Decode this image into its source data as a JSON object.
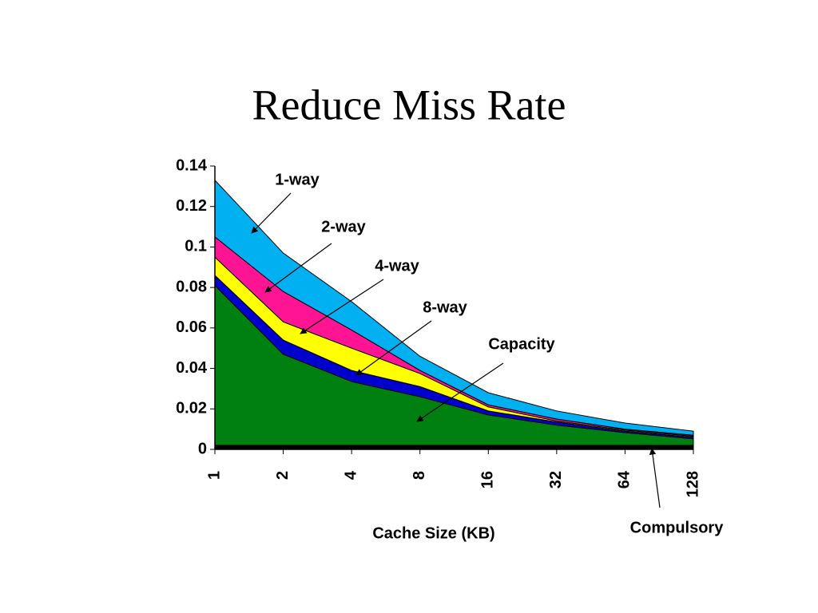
{
  "chart_data": {
    "type": "stacked-area",
    "title": "Reduce Miss Rate",
    "x_label": "Cache Size (KB)",
    "categories": [
      "1",
      "2",
      "4",
      "8",
      "16",
      "32",
      "64",
      "128"
    ],
    "ylim": [
      0,
      0.14
    ],
    "yticks": [
      0,
      0.02,
      0.04,
      0.06,
      0.08,
      0.1,
      0.12,
      0.14
    ],
    "series": [
      {
        "name": "Compulsory",
        "color": "#000000",
        "values": [
          0.002,
          0.002,
          0.002,
          0.002,
          0.002,
          0.002,
          0.002,
          0.002
        ]
      },
      {
        "name": "Capacity",
        "color": "#008010",
        "values": [
          0.079,
          0.045,
          0.0315,
          0.024,
          0.015,
          0.01,
          0.0063,
          0.0032
        ]
      },
      {
        "name": "8-way",
        "color": "#0000cc",
        "values": [
          0.005,
          0.007,
          0.0055,
          0.005,
          0.002,
          0.0015,
          0.0007,
          0.0008
        ]
      },
      {
        "name": "4-way",
        "color": "#ffff00",
        "values": [
          0.009,
          0.009,
          0.011,
          0.0065,
          0.002,
          0.0005,
          0.0005,
          0.0005
        ]
      },
      {
        "name": "2-way",
        "color": "#ff1493",
        "values": [
          0.01,
          0.015,
          0.009,
          0.0015,
          0.001,
          0.001,
          0.0005,
          0.0005
        ]
      },
      {
        "name": "1-way",
        "color": "#00b0f0",
        "values": [
          0.028,
          0.019,
          0.014,
          0.007,
          0.006,
          0.004,
          0.003,
          0.002
        ]
      }
    ]
  }
}
